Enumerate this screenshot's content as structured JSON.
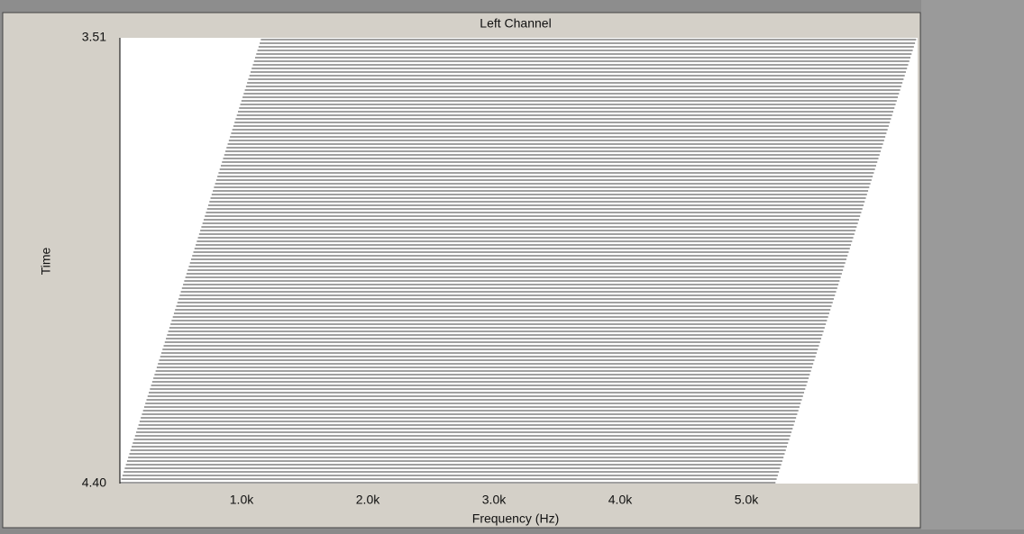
{
  "window": {
    "title": "Left Channel"
  },
  "axes": {
    "y": {
      "label": "Time",
      "tick_labels": [
        "3.51",
        "4.40"
      ]
    },
    "x": {
      "label": "Frequency (Hz)",
      "tick_labels": [
        "1.0k",
        "2.0k",
        "3.0k",
        "4.0k",
        "5.0k"
      ]
    }
  }
}
